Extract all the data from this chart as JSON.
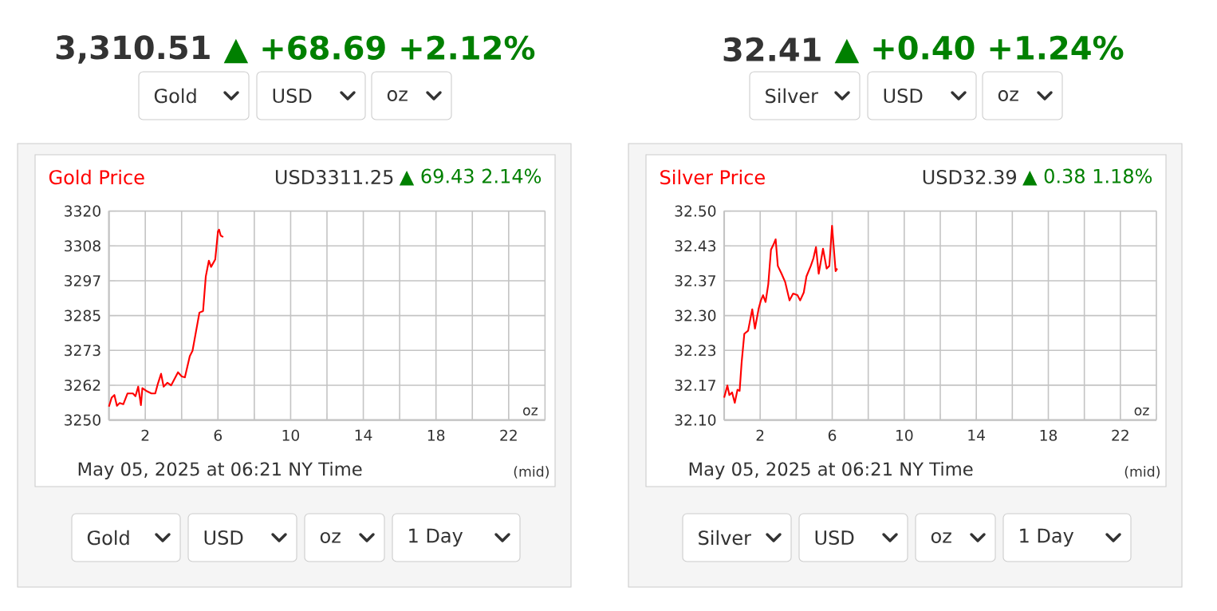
{
  "chart_data": [
    {
      "type": "line",
      "title": "Gold Price",
      "subtitle": "USD3311.25",
      "annotations": [
        "3,310.51",
        "▲ +68.69 +2.12%",
        "▲ 69.43 2.14%",
        "May 05, 2025 at 06:21 NY Time",
        "(mid)",
        "oz",
        "Gold",
        "USD",
        "oz",
        "Gold",
        "USD",
        "oz",
        "1 Day"
      ],
      "xlim": [
        0,
        24
      ],
      "xticks": [
        {
          "value": 0,
          "label": null
        },
        2,
        {
          "value": 4,
          "label": null
        },
        6,
        {
          "value": 8,
          "label": null
        },
        10,
        {
          "value": 12,
          "label": null
        },
        14,
        {
          "value": 16,
          "label": null
        },
        18,
        {
          "value": 20,
          "label": null
        },
        22,
        {
          "value": 24,
          "label": null
        }
      ],
      "ylim": [
        3250,
        3320
      ],
      "yticks": [
        3250,
        {
          "value": 3261.67,
          "label": "3262"
        },
        {
          "value": 3273.33,
          "label": "3273"
        },
        3285,
        {
          "value": 3296.67,
          "label": "3297"
        },
        {
          "value": 3308.33,
          "label": "3308"
        },
        3320
      ],
      "grid": true,
      "series": [
        {
          "color": "#ff0000",
          "x": [
            0,
            0.15,
            0.3,
            0.44,
            0.59,
            0.79,
            1.02,
            1.32,
            1.46,
            1.61,
            1.76,
            1.84,
            2.05,
            2.34,
            2.55,
            2.69,
            2.87,
            3.01,
            3.22,
            3.42,
            3.8,
            4.01,
            4.18,
            4.45,
            4.6,
            4.98,
            5.18,
            5.33,
            5.5,
            5.62,
            5.85,
            6.0,
            6.06,
            6.15,
            6.29
          ],
          "values": [
            3254.5,
            3257.5,
            3258.4,
            3254.8,
            3255.7,
            3255.3,
            3258.9,
            3258.9,
            3258,
            3261.2,
            3255,
            3260.7,
            3259.8,
            3258.9,
            3258.9,
            3262.1,
            3265.5,
            3261.2,
            3262.5,
            3261.6,
            3266,
            3264.6,
            3264.3,
            3271.4,
            3273.2,
            3286,
            3286.5,
            3298.1,
            3303.4,
            3301.3,
            3303.8,
            3313.2,
            3313.8,
            3311.8,
            3311.3
          ]
        }
      ]
    },
    {
      "type": "line",
      "title": "Silver Price",
      "subtitle": "USD32.39",
      "annotations": [
        "32.41",
        "▲ +0.40 +1.24%",
        "▲ 0.38 1.18%",
        "May 05, 2025 at 06:21 NY Time",
        "(mid)",
        "oz",
        "Silver",
        "USD",
        "oz",
        "Silver",
        "USD",
        "oz",
        "1 Day"
      ],
      "xlim": [
        0,
        24
      ],
      "xticks": [
        {
          "value": 0,
          "label": null
        },
        2,
        {
          "value": 4,
          "label": null
        },
        6,
        {
          "value": 8,
          "label": null
        },
        10,
        {
          "value": 12,
          "label": null
        },
        14,
        {
          "value": 16,
          "label": null
        },
        18,
        {
          "value": 20,
          "label": null
        },
        22,
        {
          "value": 24,
          "label": null
        }
      ],
      "ylim": [
        32.1,
        32.5
      ],
      "yticks": [
        {
          "value": 32.1,
          "label": "32.10"
        },
        {
          "value": 32.1667,
          "label": "32.17"
        },
        {
          "value": 32.2333,
          "label": "32.23"
        },
        {
          "value": 32.3,
          "label": "32.30"
        },
        {
          "value": 32.3667,
          "label": "32.37"
        },
        {
          "value": 32.4333,
          "label": "32.43"
        },
        {
          "value": 32.5,
          "label": "32.50"
        }
      ],
      "grid": true,
      "series": [
        {
          "color": "#ff0000",
          "x": [
            0,
            0.18,
            0.29,
            0.44,
            0.59,
            0.74,
            0.86,
            0.97,
            1.12,
            1.33,
            1.56,
            1.71,
            1.92,
            2.04,
            2.16,
            2.3,
            2.45,
            2.6,
            2.74,
            2.86,
            2.98,
            3.19,
            3.39,
            3.63,
            3.83,
            4.07,
            4.22,
            4.42,
            4.57,
            4.81,
            4.96,
            5.1,
            5.25,
            5.49,
            5.69,
            5.84,
            5.99,
            6.19,
            6.28
          ],
          "values": [
            32.143,
            32.166,
            32.148,
            32.153,
            32.133,
            32.158,
            32.156,
            32.21,
            32.265,
            32.271,
            32.312,
            32.275,
            32.314,
            32.329,
            32.339,
            32.326,
            32.36,
            32.426,
            32.436,
            32.446,
            32.395,
            32.38,
            32.364,
            32.329,
            32.342,
            32.339,
            32.329,
            32.344,
            32.375,
            32.395,
            32.41,
            32.431,
            32.38,
            32.428,
            32.39,
            32.395,
            32.472,
            32.385,
            32.39
          ]
        }
      ]
    }
  ]
}
